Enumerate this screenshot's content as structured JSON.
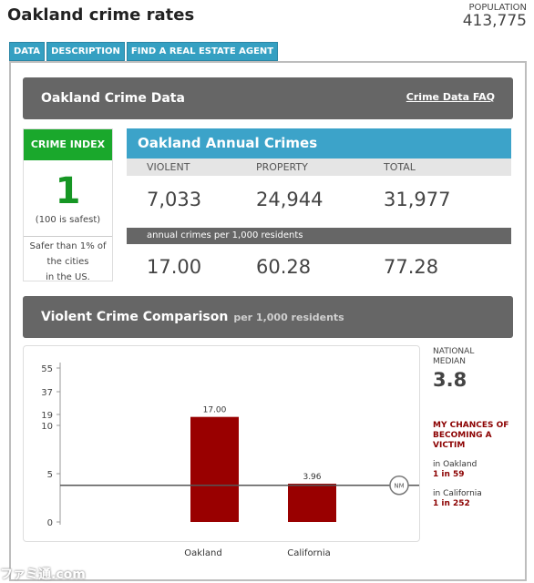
{
  "page": {
    "title": "Oakland crime rates",
    "population_label": "POPULATION",
    "population_value": "413,775"
  },
  "tabs": [
    {
      "label": "DATA"
    },
    {
      "label": "DESCRIPTION"
    },
    {
      "label": "FIND A REAL ESTATE AGENT"
    }
  ],
  "crime_data_header": {
    "title": "Oakland Crime Data",
    "faq_link": "Crime Data FAQ"
  },
  "crime_index": {
    "label": "CRIME INDEX",
    "value": "1",
    "note": "(100 is safest)",
    "safer_line1": "Safer than 1% of",
    "safer_line2": "the cities",
    "safer_line3": "in the US."
  },
  "annual_crimes": {
    "title": "Oakland Annual Crimes",
    "columns": [
      "VIOLENT",
      "PROPERTY",
      "TOTAL"
    ],
    "totals": [
      "7,033",
      "24,944",
      "31,977"
    ],
    "per_label": "annual crimes per 1,000 residents",
    "per_values": [
      "17.00",
      "60.28",
      "77.28"
    ]
  },
  "comparison": {
    "title": "Violent Crime Comparison",
    "subtitle": "per 1,000 residents",
    "national_median_label_line1": "NATIONAL",
    "national_median_label_line2": "MEDIAN",
    "national_median_value": "3.8",
    "chances_label_line1": "MY CHANCES OF",
    "chances_label_line2": "BECOMING A",
    "chances_label_line3": "VICTIM",
    "in_oakland_label": "in Oakland",
    "in_oakland_value": "1 in 59",
    "in_california_label": "in California",
    "in_california_value": "1 in 252",
    "nm_marker": "NM"
  },
  "chart_data": {
    "type": "bar",
    "categories": [
      "Oakland",
      "California"
    ],
    "values": [
      17.0,
      3.96
    ],
    "data_labels": [
      "17.00",
      "3.96"
    ],
    "y_ticks": [
      "0",
      "5",
      "10",
      "19",
      "37",
      "55"
    ],
    "y_tick_values": [
      0,
      5,
      10,
      19,
      37,
      55
    ],
    "reference_line": {
      "label": "NM",
      "value": 3.8
    },
    "bar_color": "#990000",
    "grid": false,
    "title": "",
    "xlabel": "",
    "ylabel": ""
  },
  "watermark": "ファミ通.com",
  "colors": {
    "tab_blue": "#35a0c2",
    "header_gray": "#666666",
    "crime_index_green": "#1aa82c",
    "bar_red": "#990000"
  }
}
